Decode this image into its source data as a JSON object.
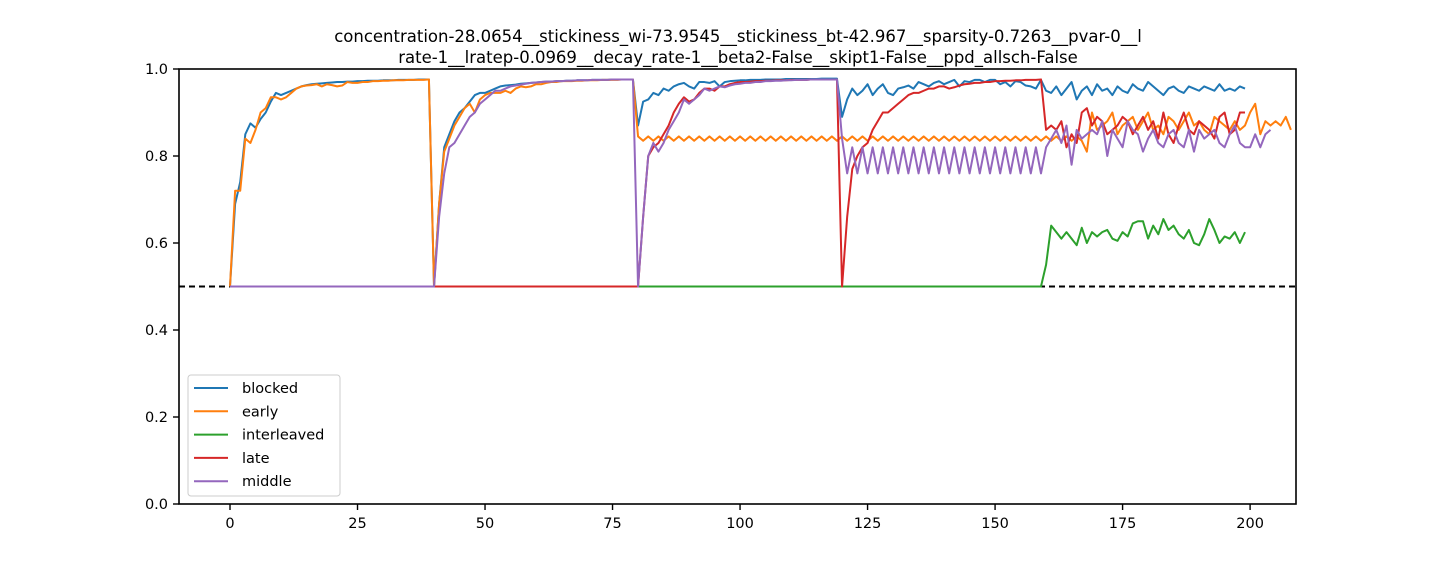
{
  "chart_data": {
    "type": "line",
    "title_lines": [
      "concentration-28.0654__stickiness_wi-73.9545__stickiness_bt-42.967__sparsity-0.7263__pvar-0__l",
      "rate-1__lratep-0.0969__decay_rate-1__beta2-False__skipt1-False__ppd_allsch-False"
    ],
    "xlabel": "",
    "ylabel": "",
    "xlim": [
      -10,
      209
    ],
    "ylim": [
      0.0,
      1.0
    ],
    "xticks": [
      0,
      25,
      50,
      75,
      100,
      125,
      150,
      175,
      200
    ],
    "yticks": [
      0.0,
      0.2,
      0.4,
      0.6,
      0.8,
      1.0
    ],
    "reference_line": {
      "y": 0.5,
      "style": "dashed",
      "color": "#000000"
    },
    "legend_position": "lower-left",
    "series": [
      {
        "name": "blocked",
        "color": "#1f77b4",
        "values": [
          0.5,
          0.69,
          0.74,
          0.85,
          0.875,
          0.865,
          0.885,
          0.9,
          0.925,
          0.945,
          0.94,
          0.945,
          0.95,
          0.955,
          0.96,
          0.963,
          0.965,
          0.966,
          0.967,
          0.968,
          0.969,
          0.97,
          0.97,
          0.971,
          0.971,
          0.972,
          0.972,
          0.973,
          0.973,
          0.973,
          0.974,
          0.974,
          0.974,
          0.975,
          0.975,
          0.975,
          0.975,
          0.976,
          0.976,
          0.976,
          0.5,
          0.69,
          0.82,
          0.85,
          0.88,
          0.9,
          0.91,
          0.925,
          0.94,
          0.945,
          0.945,
          0.95,
          0.955,
          0.96,
          0.962,
          0.963,
          0.964,
          0.966,
          0.967,
          0.968,
          0.969,
          0.97,
          0.971,
          0.971,
          0.972,
          0.972,
          0.973,
          0.973,
          0.974,
          0.974,
          0.974,
          0.975,
          0.975,
          0.975,
          0.975,
          0.976,
          0.976,
          0.976,
          0.976,
          0.976,
          0.87,
          0.925,
          0.93,
          0.945,
          0.94,
          0.955,
          0.95,
          0.96,
          0.965,
          0.968,
          0.96,
          0.955,
          0.97,
          0.97,
          0.968,
          0.972,
          0.96,
          0.97,
          0.972,
          0.973,
          0.974,
          0.974,
          0.975,
          0.975,
          0.975,
          0.976,
          0.976,
          0.976,
          0.976,
          0.977,
          0.977,
          0.977,
          0.977,
          0.977,
          0.977,
          0.977,
          0.978,
          0.978,
          0.978,
          0.978,
          0.89,
          0.93,
          0.955,
          0.94,
          0.95,
          0.965,
          0.94,
          0.955,
          0.965,
          0.945,
          0.94,
          0.955,
          0.958,
          0.962,
          0.955,
          0.97,
          0.965,
          0.96,
          0.968,
          0.972,
          0.965,
          0.97,
          0.975,
          0.96,
          0.972,
          0.97,
          0.975,
          0.975,
          0.97,
          0.975,
          0.975,
          0.965,
          0.97,
          0.96,
          0.972,
          0.97,
          0.962,
          0.96,
          0.955,
          0.975,
          0.95,
          0.945,
          0.96,
          0.94,
          0.955,
          0.97,
          0.93,
          0.95,
          0.96,
          0.94,
          0.965,
          0.95,
          0.955,
          0.94,
          0.96,
          0.95,
          0.945,
          0.965,
          0.955,
          0.95,
          0.97,
          0.96,
          0.95,
          0.94,
          0.955,
          0.96,
          0.95,
          0.945,
          0.96,
          0.955,
          0.95,
          0.96,
          0.955,
          0.95,
          0.965,
          0.95,
          0.955,
          0.95,
          0.96,
          0.955
        ],
        "note": "x = 0..199"
      },
      {
        "name": "early",
        "color": "#ff7f0e",
        "values": [
          0.5,
          0.72,
          0.72,
          0.84,
          0.83,
          0.86,
          0.9,
          0.91,
          0.935,
          0.935,
          0.93,
          0.935,
          0.945,
          0.955,
          0.96,
          0.962,
          0.963,
          0.965,
          0.96,
          0.965,
          0.963,
          0.96,
          0.962,
          0.97,
          0.968,
          0.968,
          0.97,
          0.97,
          0.972,
          0.972,
          0.973,
          0.973,
          0.974,
          0.974,
          0.974,
          0.975,
          0.975,
          0.975,
          0.975,
          0.976,
          0.5,
          0.69,
          0.81,
          0.84,
          0.87,
          0.89,
          0.91,
          0.92,
          0.9,
          0.93,
          0.94,
          0.945,
          0.945,
          0.945,
          0.95,
          0.945,
          0.955,
          0.96,
          0.958,
          0.96,
          0.965,
          0.965,
          0.968,
          0.97,
          0.97,
          0.972,
          0.972,
          0.972,
          0.973,
          0.973,
          0.974,
          0.974,
          0.974,
          0.975,
          0.975,
          0.975,
          0.975,
          0.976,
          0.976,
          0.976,
          0.845,
          0.835,
          0.845,
          0.835,
          0.845,
          0.835,
          0.845,
          0.835,
          0.845,
          0.835,
          0.845,
          0.835,
          0.845,
          0.835,
          0.845,
          0.835,
          0.845,
          0.835,
          0.845,
          0.835,
          0.845,
          0.835,
          0.845,
          0.835,
          0.845,
          0.835,
          0.845,
          0.835,
          0.845,
          0.835,
          0.845,
          0.835,
          0.845,
          0.835,
          0.845,
          0.835,
          0.845,
          0.835,
          0.845,
          0.835,
          0.845,
          0.835,
          0.845,
          0.835,
          0.845,
          0.835,
          0.845,
          0.835,
          0.845,
          0.835,
          0.845,
          0.835,
          0.845,
          0.835,
          0.845,
          0.835,
          0.845,
          0.835,
          0.845,
          0.835,
          0.845,
          0.835,
          0.845,
          0.835,
          0.845,
          0.835,
          0.845,
          0.835,
          0.845,
          0.835,
          0.845,
          0.835,
          0.845,
          0.835,
          0.845,
          0.835,
          0.845,
          0.835,
          0.845,
          0.835,
          0.845,
          0.835,
          0.845,
          0.835,
          0.845,
          0.835,
          0.845,
          0.835,
          0.81,
          0.9,
          0.86,
          0.87,
          0.88,
          0.9,
          0.85,
          0.87,
          0.88,
          0.89,
          0.86,
          0.88,
          0.9,
          0.86,
          0.87,
          0.85,
          0.89,
          0.88,
          0.86,
          0.88,
          0.9,
          0.87,
          0.88,
          0.86,
          0.85,
          0.89,
          0.88,
          0.87,
          0.86,
          0.88,
          0.86,
          0.87,
          0.9,
          0.92,
          0.85,
          0.88,
          0.87,
          0.88,
          0.87,
          0.89,
          0.86
        ],
        "note": "x = 0..199"
      },
      {
        "name": "interleaved",
        "color": "#2ca02c",
        "values": [
          0.5,
          0.5,
          0.5,
          0.5,
          0.5,
          0.5,
          0.5,
          0.5,
          0.5,
          0.5,
          0.5,
          0.5,
          0.5,
          0.5,
          0.5,
          0.5,
          0.5,
          0.5,
          0.5,
          0.5,
          0.5,
          0.5,
          0.5,
          0.5,
          0.5,
          0.5,
          0.5,
          0.5,
          0.5,
          0.5,
          0.5,
          0.5,
          0.5,
          0.5,
          0.5,
          0.5,
          0.5,
          0.5,
          0.5,
          0.5,
          0.5,
          0.5,
          0.5,
          0.5,
          0.5,
          0.5,
          0.5,
          0.5,
          0.5,
          0.5,
          0.5,
          0.5,
          0.5,
          0.5,
          0.5,
          0.5,
          0.5,
          0.5,
          0.5,
          0.5,
          0.5,
          0.5,
          0.5,
          0.5,
          0.5,
          0.5,
          0.5,
          0.5,
          0.5,
          0.5,
          0.5,
          0.5,
          0.5,
          0.5,
          0.5,
          0.5,
          0.5,
          0.5,
          0.5,
          0.5,
          0.5,
          0.5,
          0.5,
          0.5,
          0.5,
          0.5,
          0.5,
          0.5,
          0.5,
          0.5,
          0.5,
          0.5,
          0.5,
          0.5,
          0.5,
          0.5,
          0.5,
          0.5,
          0.5,
          0.5,
          0.5,
          0.5,
          0.5,
          0.5,
          0.5,
          0.5,
          0.5,
          0.5,
          0.5,
          0.5,
          0.5,
          0.5,
          0.5,
          0.5,
          0.5,
          0.5,
          0.5,
          0.5,
          0.5,
          0.5,
          0.5,
          0.5,
          0.5,
          0.5,
          0.5,
          0.5,
          0.5,
          0.5,
          0.5,
          0.5,
          0.5,
          0.5,
          0.5,
          0.5,
          0.5,
          0.5,
          0.5,
          0.5,
          0.5,
          0.5,
          0.5,
          0.5,
          0.5,
          0.5,
          0.5,
          0.5,
          0.5,
          0.5,
          0.5,
          0.5,
          0.5,
          0.5,
          0.5,
          0.5,
          0.5,
          0.5,
          0.5,
          0.5,
          0.5,
          0.5,
          0.55,
          0.64,
          0.625,
          0.61,
          0.625,
          0.61,
          0.595,
          0.635,
          0.6,
          0.625,
          0.615,
          0.625,
          0.63,
          0.61,
          0.605,
          0.625,
          0.615,
          0.645,
          0.65,
          0.65,
          0.61,
          0.64,
          0.62,
          0.655,
          0.63,
          0.64,
          0.62,
          0.61,
          0.63,
          0.6,
          0.595,
          0.62,
          0.655,
          0.63,
          0.6,
          0.615,
          0.61,
          0.625,
          0.6,
          0.625
        ],
        "note": "x = 0..199"
      },
      {
        "name": "late",
        "color": "#d62728",
        "values": [
          0.5,
          0.5,
          0.5,
          0.5,
          0.5,
          0.5,
          0.5,
          0.5,
          0.5,
          0.5,
          0.5,
          0.5,
          0.5,
          0.5,
          0.5,
          0.5,
          0.5,
          0.5,
          0.5,
          0.5,
          0.5,
          0.5,
          0.5,
          0.5,
          0.5,
          0.5,
          0.5,
          0.5,
          0.5,
          0.5,
          0.5,
          0.5,
          0.5,
          0.5,
          0.5,
          0.5,
          0.5,
          0.5,
          0.5,
          0.5,
          0.5,
          0.5,
          0.5,
          0.5,
          0.5,
          0.5,
          0.5,
          0.5,
          0.5,
          0.5,
          0.5,
          0.5,
          0.5,
          0.5,
          0.5,
          0.5,
          0.5,
          0.5,
          0.5,
          0.5,
          0.5,
          0.5,
          0.5,
          0.5,
          0.5,
          0.5,
          0.5,
          0.5,
          0.5,
          0.5,
          0.5,
          0.5,
          0.5,
          0.5,
          0.5,
          0.5,
          0.5,
          0.5,
          0.5,
          0.5,
          0.5,
          0.66,
          0.8,
          0.82,
          0.83,
          0.85,
          0.87,
          0.9,
          0.92,
          0.935,
          0.925,
          0.93,
          0.945,
          0.955,
          0.955,
          0.95,
          0.96,
          0.96,
          0.965,
          0.968,
          0.97,
          0.97,
          0.971,
          0.972,
          0.972,
          0.973,
          0.973,
          0.974,
          0.974,
          0.974,
          0.975,
          0.975,
          0.975,
          0.975,
          0.976,
          0.976,
          0.976,
          0.976,
          0.976,
          0.976,
          0.5,
          0.66,
          0.77,
          0.8,
          0.82,
          0.83,
          0.86,
          0.88,
          0.9,
          0.9,
          0.91,
          0.92,
          0.93,
          0.94,
          0.945,
          0.945,
          0.95,
          0.955,
          0.955,
          0.96,
          0.96,
          0.955,
          0.958,
          0.962,
          0.965,
          0.966,
          0.968,
          0.968,
          0.97,
          0.97,
          0.972,
          0.972,
          0.973,
          0.973,
          0.974,
          0.974,
          0.975,
          0.975,
          0.975,
          0.976,
          0.86,
          0.87,
          0.86,
          0.88,
          0.82,
          0.85,
          0.83,
          0.9,
          0.91,
          0.87,
          0.89,
          0.88,
          0.85,
          0.86,
          0.87,
          0.89,
          0.88,
          0.85,
          0.87,
          0.89,
          0.86,
          0.88,
          0.84,
          0.9,
          0.85,
          0.83,
          0.87,
          0.9,
          0.86,
          0.85,
          0.88,
          0.87,
          0.86,
          0.84,
          0.89,
          0.9,
          0.85,
          0.86,
          0.9,
          0.9
        ],
        "note": "x = 0..199"
      },
      {
        "name": "middle",
        "color": "#9467bd",
        "values": [
          0.5,
          0.5,
          0.5,
          0.5,
          0.5,
          0.5,
          0.5,
          0.5,
          0.5,
          0.5,
          0.5,
          0.5,
          0.5,
          0.5,
          0.5,
          0.5,
          0.5,
          0.5,
          0.5,
          0.5,
          0.5,
          0.5,
          0.5,
          0.5,
          0.5,
          0.5,
          0.5,
          0.5,
          0.5,
          0.5,
          0.5,
          0.5,
          0.5,
          0.5,
          0.5,
          0.5,
          0.5,
          0.5,
          0.5,
          0.5,
          0.5,
          0.66,
          0.76,
          0.82,
          0.83,
          0.85,
          0.87,
          0.89,
          0.9,
          0.92,
          0.93,
          0.94,
          0.95,
          0.95,
          0.955,
          0.96,
          0.962,
          0.964,
          0.966,
          0.968,
          0.969,
          0.97,
          0.971,
          0.971,
          0.972,
          0.972,
          0.973,
          0.973,
          0.974,
          0.974,
          0.974,
          0.975,
          0.975,
          0.975,
          0.975,
          0.976,
          0.976,
          0.976,
          0.976,
          0.976,
          0.5,
          0.66,
          0.8,
          0.83,
          0.81,
          0.83,
          0.86,
          0.88,
          0.9,
          0.93,
          0.92,
          0.93,
          0.94,
          0.955,
          0.95,
          0.955,
          0.96,
          0.958,
          0.962,
          0.965,
          0.966,
          0.968,
          0.968,
          0.97,
          0.97,
          0.972,
          0.972,
          0.973,
          0.973,
          0.974,
          0.974,
          0.975,
          0.975,
          0.975,
          0.976,
          0.976,
          0.976,
          0.976,
          0.976,
          0.976,
          0.84,
          0.76,
          0.82,
          0.76,
          0.82,
          0.76,
          0.82,
          0.76,
          0.82,
          0.76,
          0.82,
          0.76,
          0.82,
          0.76,
          0.82,
          0.76,
          0.82,
          0.76,
          0.82,
          0.76,
          0.82,
          0.76,
          0.82,
          0.76,
          0.82,
          0.76,
          0.82,
          0.76,
          0.82,
          0.76,
          0.82,
          0.76,
          0.82,
          0.76,
          0.82,
          0.76,
          0.82,
          0.76,
          0.82,
          0.76,
          0.82,
          0.84,
          0.86,
          0.83,
          0.87,
          0.78,
          0.86,
          0.84,
          0.85,
          0.86,
          0.85,
          0.88,
          0.8,
          0.86,
          0.84,
          0.82,
          0.88,
          0.86,
          0.85,
          0.81,
          0.84,
          0.86,
          0.83,
          0.82,
          0.85,
          0.86,
          0.83,
          0.82,
          0.86,
          0.81,
          0.86,
          0.84,
          0.85,
          0.86,
          0.83,
          0.82,
          0.85,
          0.87,
          0.83,
          0.82,
          0.82,
          0.85,
          0.82,
          0.85,
          0.86
        ],
        "note": "x = 0..199"
      }
    ]
  }
}
